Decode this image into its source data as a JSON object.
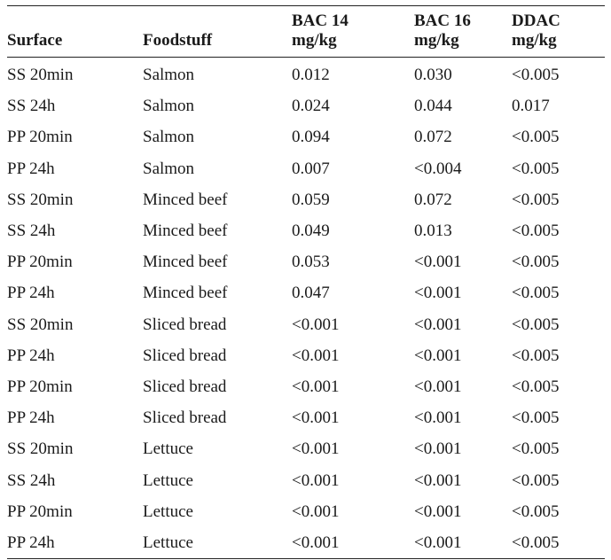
{
  "table": {
    "headers": [
      {
        "line1": "Surface",
        "line2": ""
      },
      {
        "line1": "Foodstuff",
        "line2": ""
      },
      {
        "line1": "BAC 14",
        "line2": "mg/kg"
      },
      {
        "line1": "BAC 16",
        "line2": "mg/kg"
      },
      {
        "line1": "DDAC",
        "line2": "mg/kg"
      }
    ],
    "rows": [
      [
        "SS 20min",
        "Salmon",
        "0.012",
        "0.030",
        "<0.005"
      ],
      [
        "SS 24h",
        "Salmon",
        "0.024",
        "0.044",
        "0.017"
      ],
      [
        "PP 20min",
        "Salmon",
        "0.094",
        "0.072",
        "<0.005"
      ],
      [
        "PP 24h",
        "Salmon",
        "0.007",
        "<0.004",
        "<0.005"
      ],
      [
        "SS 20min",
        "Minced beef",
        "0.059",
        "0.072",
        "<0.005"
      ],
      [
        "SS 24h",
        "Minced beef",
        "0.049",
        "0.013",
        "<0.005"
      ],
      [
        "PP 20min",
        "Minced beef",
        "0.053",
        "<0.001",
        "<0.005"
      ],
      [
        "PP 24h",
        "Minced beef",
        "0.047",
        "<0.001",
        "<0.005"
      ],
      [
        "SS 20min",
        "Sliced bread",
        "<0.001",
        "<0.001",
        "<0.005"
      ],
      [
        "PP 24h",
        "Sliced bread",
        "<0.001",
        "<0.001",
        "<0.005"
      ],
      [
        "PP 20min",
        "Sliced bread",
        "<0.001",
        "<0.001",
        "<0.005"
      ],
      [
        "PP 24h",
        "Sliced bread",
        "<0.001",
        "<0.001",
        "<0.005"
      ],
      [
        "SS 20min",
        "Lettuce",
        "<0.001",
        "<0.001",
        "<0.005"
      ],
      [
        "SS 24h",
        "Lettuce",
        "<0.001",
        "<0.001",
        "<0.005"
      ],
      [
        "PP 20min",
        "Lettuce",
        "<0.001",
        "<0.001",
        "<0.005"
      ],
      [
        "PP 24h",
        "Lettuce",
        "<0.001",
        "<0.001",
        "<0.005"
      ]
    ]
  }
}
